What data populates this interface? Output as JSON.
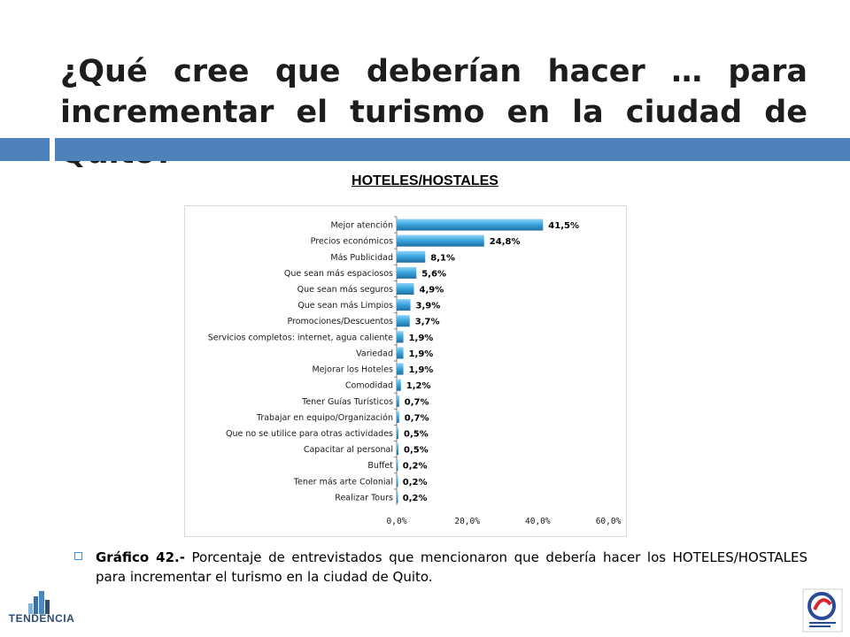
{
  "slide": {
    "title": "¿Qué cree que deberían hacer … para incrementar el turismo en la ciudad de Quito?",
    "heading": "HOTELES/HOSTALES",
    "caption_label": "Gráfico 42.-",
    "caption_text": " Porcentaje de entrevistados que mencionaron que debería hacer los HOTELES/HOSTALES para incrementar el turismo en la ciudad de Quito.",
    "logo_left_text": "TENDENCIA"
  },
  "colors": {
    "title_bar": "#4f81bd",
    "bar_fill": "#3aa8e0",
    "bar_highlight": "#8fd3f5",
    "bar_shadow": "#1f6fa3",
    "grid": "#d0d0d0"
  },
  "chart_data": {
    "type": "bar",
    "orientation": "horizontal",
    "title": "HOTELES/HOSTALES",
    "xlim": [
      0,
      60
    ],
    "ticks": [
      0,
      20,
      40,
      60
    ],
    "tick_labels": [
      "0,0%",
      "20,0%",
      "40,0%",
      "60,0%"
    ],
    "grid": false,
    "legend": "none",
    "categories": [
      "Mejor atención",
      "Precios económicos",
      "Más Publicidad",
      "Que sean más espaciosos",
      "Que sean más seguros",
      "Que sean más Limpios",
      "Promociones/Descuentos",
      "Servicios completos: internet, agua caliente",
      "Variedad",
      "Mejorar los Hoteles",
      "Comodidad",
      "Tener Guías Turísticos",
      "Trabajar en equipo/Organización",
      "Que no se utilice para otras actividades",
      "Capacitar al personal",
      "Buffet",
      "Tener más arte Colonial",
      "Realizar Tours"
    ],
    "values": [
      41.5,
      24.8,
      8.1,
      5.6,
      4.9,
      3.9,
      3.7,
      1.9,
      1.9,
      1.9,
      1.2,
      0.7,
      0.7,
      0.5,
      0.5,
      0.2,
      0.2,
      0.2
    ],
    "value_labels": [
      "41,5%",
      "24,8%",
      "8,1%",
      "5,6%",
      "4,9%",
      "3,9%",
      "3,7%",
      "1,9%",
      "1,9%",
      "1,9%",
      "1,2%",
      "0,7%",
      "0,7%",
      "0,5%",
      "0,5%",
      "0,2%",
      "0,2%",
      "0,2%"
    ]
  }
}
